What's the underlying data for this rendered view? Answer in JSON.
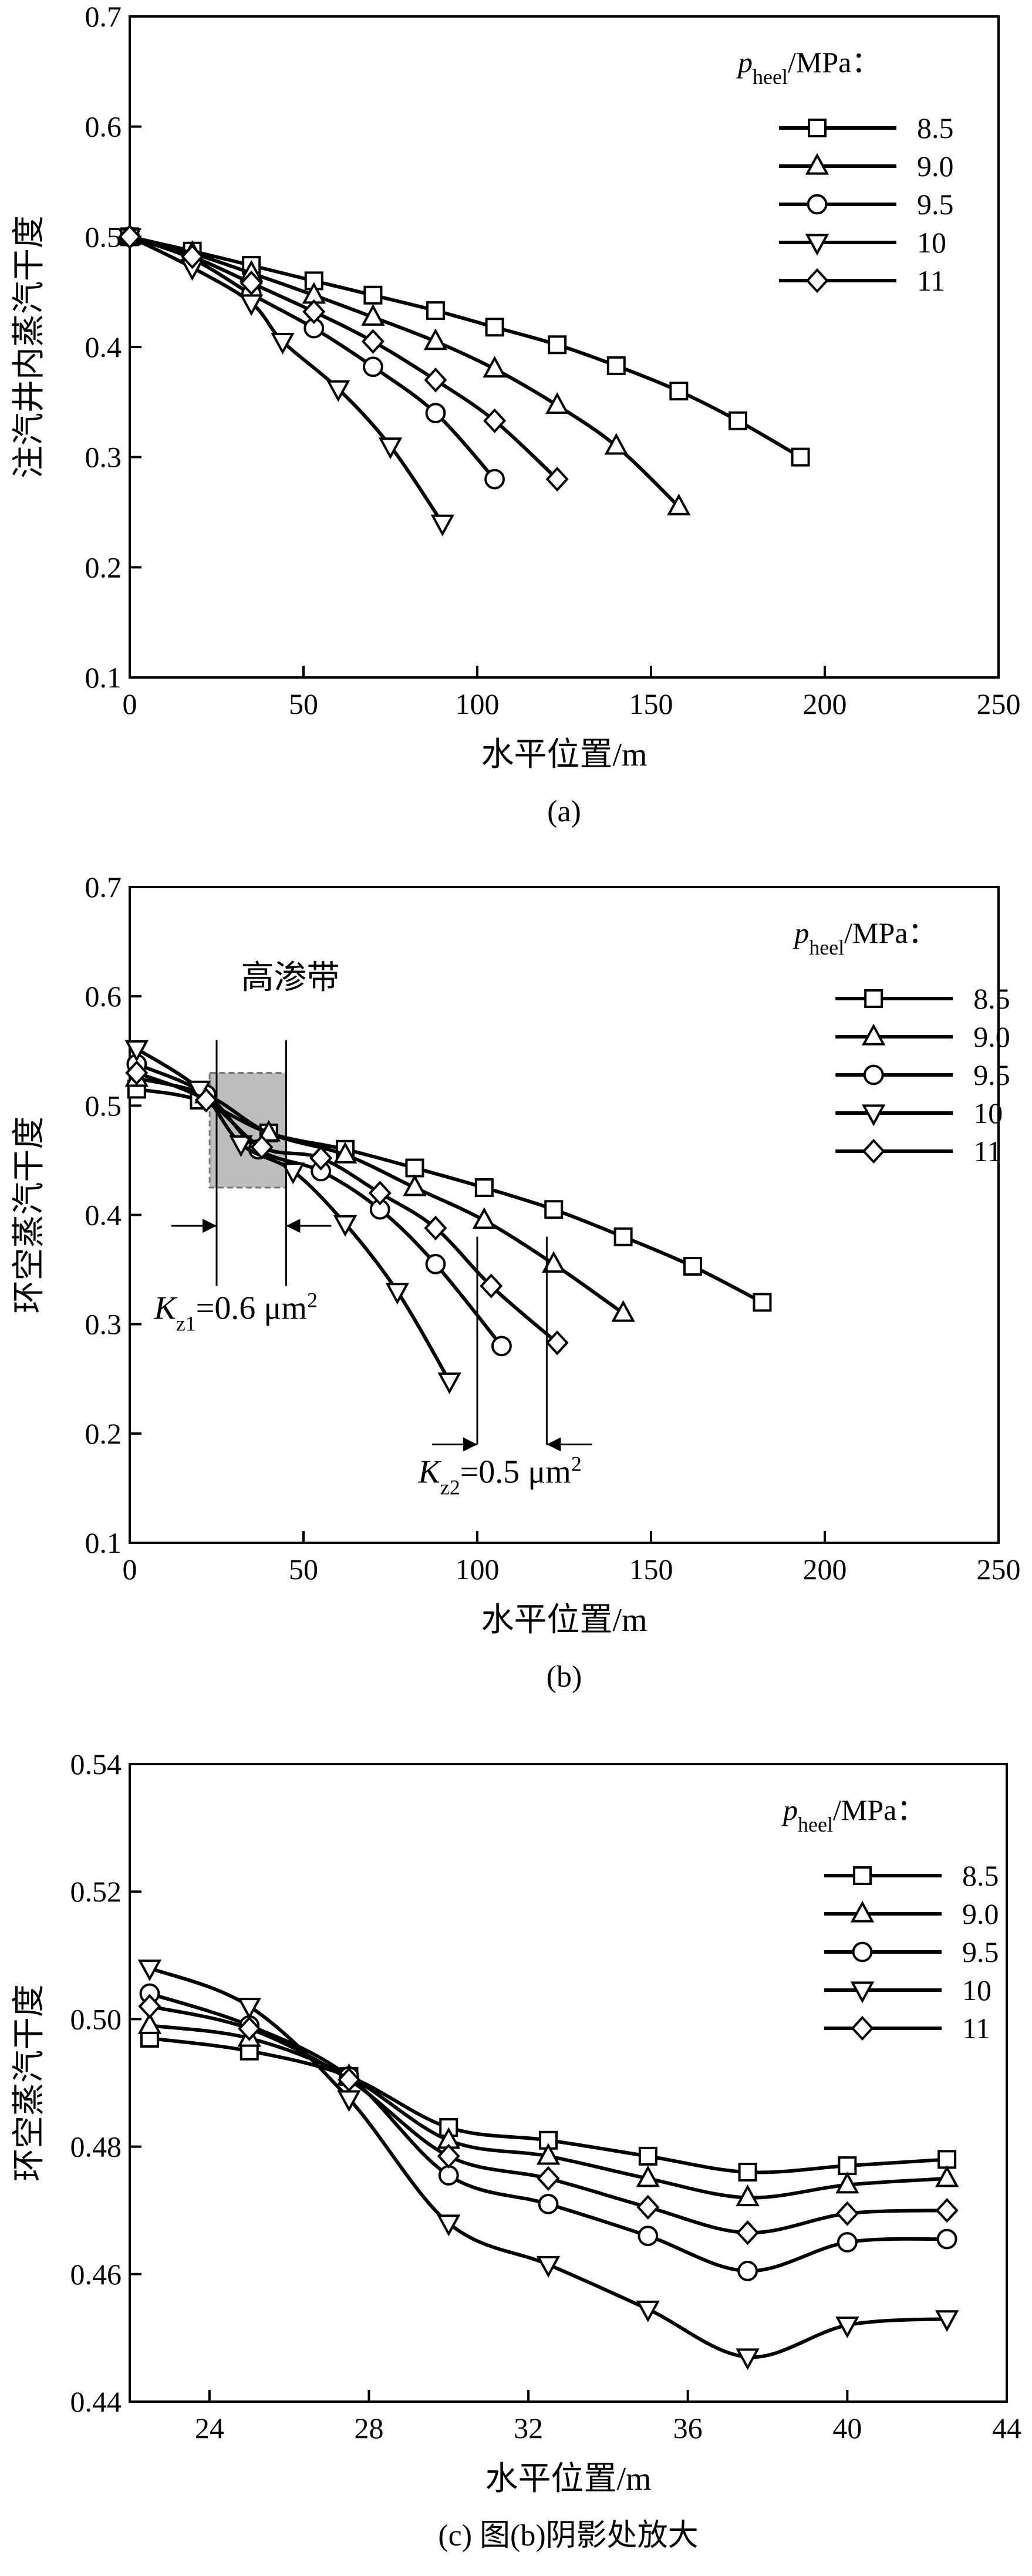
{
  "chart_data": [
    {
      "type": "line",
      "caption": "(a)",
      "x_label": "水平位置/m",
      "y_label": "注汽井内蒸汽干度",
      "legend_title": {
        "symbol": "p",
        "sub": "heel",
        "unit": "/MPa："
      },
      "legend": "upper right",
      "xlim": [
        0,
        250
      ],
      "xticks": [
        0,
        50,
        100,
        150,
        200,
        250
      ],
      "ylim": [
        0.1,
        0.7
      ],
      "yticks": [
        0.1,
        0.2,
        0.3,
        0.4,
        0.5,
        0.6,
        0.7
      ],
      "series": [
        {
          "name": "8.5",
          "marker": "square",
          "color": "#000000",
          "x": [
            0,
            18,
            35,
            53,
            70,
            88,
            105,
            123,
            140,
            158,
            175,
            193
          ],
          "values": [
            0.5,
            0.487,
            0.474,
            0.46,
            0.447,
            0.433,
            0.418,
            0.402,
            0.383,
            0.36,
            0.333,
            0.3
          ]
        },
        {
          "name": "9.0",
          "marker": "triangle-up",
          "color": "#000000",
          "x": [
            0,
            18,
            35,
            53,
            70,
            88,
            105,
            123,
            140,
            158
          ],
          "values": [
            0.5,
            0.485,
            0.467,
            0.447,
            0.427,
            0.405,
            0.38,
            0.347,
            0.31,
            0.255
          ]
        },
        {
          "name": "9.5",
          "marker": "circle",
          "color": "#000000",
          "x": [
            0,
            18,
            35,
            53,
            70,
            88,
            105
          ],
          "values": [
            0.5,
            0.48,
            0.448,
            0.417,
            0.382,
            0.34,
            0.28
          ]
        },
        {
          "name": "10",
          "marker": "triangle-down",
          "color": "#000000",
          "x": [
            0,
            18,
            35,
            44,
            60,
            75,
            90
          ],
          "values": [
            0.5,
            0.472,
            0.44,
            0.405,
            0.362,
            0.31,
            0.24
          ]
        },
        {
          "name": "11",
          "marker": "diamond",
          "color": "#000000",
          "x": [
            0,
            18,
            35,
            53,
            70,
            88,
            105,
            123
          ],
          "values": [
            0.5,
            0.482,
            0.458,
            0.432,
            0.405,
            0.37,
            0.333,
            0.28
          ]
        }
      ]
    },
    {
      "type": "line",
      "caption": "(b)",
      "x_label": "水平位置/m",
      "y_label": "环空蒸汽干度",
      "legend_title": {
        "symbol": "p",
        "sub": "heel",
        "unit": "/MPa："
      },
      "legend": "upper right",
      "xlim": [
        0,
        250
      ],
      "xticks": [
        0,
        50,
        100,
        150,
        200,
        250
      ],
      "ylim": [
        0.1,
        0.7
      ],
      "yticks": [
        0.1,
        0.2,
        0.3,
        0.4,
        0.5,
        0.6,
        0.7
      ],
      "annotations": {
        "zone": "高渗带",
        "kz1": {
          "symbol": "K",
          "sub": "z1",
          "rest": "=0.6 μm",
          "sup": "2"
        },
        "kz2": {
          "symbol": "K",
          "sub": "z2",
          "rest": "=0.5 μm",
          "sup": "2"
        }
      },
      "series": [
        {
          "name": "8.5",
          "marker": "square",
          "color": "#000000",
          "x": [
            2,
            20,
            40,
            62,
            82,
            102,
            122,
            142,
            162,
            182
          ],
          "values": [
            0.515,
            0.505,
            0.475,
            0.46,
            0.443,
            0.425,
            0.405,
            0.38,
            0.353,
            0.32
          ]
        },
        {
          "name": "9.0",
          "marker": "triangle-up",
          "color": "#000000",
          "x": [
            2,
            22,
            40,
            62,
            82,
            102,
            122,
            142
          ],
          "values": [
            0.525,
            0.51,
            0.475,
            0.455,
            0.425,
            0.395,
            0.355,
            0.31
          ]
        },
        {
          "name": "9.5",
          "marker": "circle",
          "color": "#000000",
          "x": [
            2,
            22,
            37,
            55,
            72,
            88,
            107
          ],
          "values": [
            0.538,
            0.51,
            0.46,
            0.44,
            0.405,
            0.355,
            0.28
          ]
        },
        {
          "name": "10",
          "marker": "triangle-down",
          "color": "#000000",
          "x": [
            2,
            20,
            32,
            47,
            62,
            77,
            92
          ],
          "values": [
            0.552,
            0.515,
            0.465,
            0.44,
            0.392,
            0.33,
            0.248
          ]
        },
        {
          "name": "11",
          "marker": "diamond",
          "color": "#000000",
          "x": [
            2,
            22,
            38,
            55,
            72,
            88,
            104,
            123
          ],
          "values": [
            0.53,
            0.505,
            0.462,
            0.452,
            0.42,
            0.388,
            0.335,
            0.283
          ]
        }
      ]
    },
    {
      "type": "line",
      "caption": "(c) 图(b)阴影处放大",
      "x_label": "水平位置/m",
      "y_label": "环空蒸汽干度",
      "legend_title": {
        "symbol": "p",
        "sub": "heel",
        "unit": "/MPa："
      },
      "legend": "upper right",
      "xlim": [
        22,
        44
      ],
      "xticks": [
        24,
        28,
        32,
        36,
        40,
        44
      ],
      "ylim": [
        0.44,
        0.54
      ],
      "yticks": [
        0.44,
        0.46,
        0.48,
        {
          "value": 0.5,
          "label": "0.50"
        },
        0.52,
        0.54
      ],
      "series": [
        {
          "name": "8.5",
          "marker": "square",
          "color": "#000000",
          "x": [
            22.5,
            25,
            27.5,
            30,
            32.5,
            35,
            37.5,
            40,
            42.5
          ],
          "values": [
            0.497,
            0.495,
            0.491,
            0.483,
            0.481,
            0.4785,
            0.476,
            0.477,
            0.478
          ]
        },
        {
          "name": "9.0",
          "marker": "triangle-up",
          "color": "#000000",
          "x": [
            22.5,
            25,
            27.5,
            30,
            32.5,
            35,
            37.5,
            40,
            42.5
          ],
          "values": [
            0.499,
            0.497,
            0.491,
            0.481,
            0.4785,
            0.475,
            0.472,
            0.474,
            0.475
          ]
        },
        {
          "name": "9.5",
          "marker": "circle",
          "color": "#000000",
          "x": [
            22.5,
            25,
            27.5,
            30,
            32.5,
            35,
            37.5,
            40,
            42.5
          ],
          "values": [
            0.504,
            0.499,
            0.491,
            0.4755,
            0.471,
            0.466,
            0.4605,
            0.465,
            0.4655
          ]
        },
        {
          "name": "10",
          "marker": "triangle-down",
          "color": "#000000",
          "x": [
            22.5,
            25,
            27.5,
            30,
            32.5,
            35,
            37.5,
            40,
            42.5
          ],
          "values": [
            0.508,
            0.502,
            0.4875,
            0.468,
            0.4615,
            0.4545,
            0.447,
            0.452,
            0.453
          ]
        },
        {
          "name": "11",
          "marker": "diamond",
          "color": "#000000",
          "x": [
            22.5,
            25,
            27.5,
            30,
            32.5,
            35,
            37.5,
            40,
            42.5
          ],
          "values": [
            0.502,
            0.4985,
            0.4905,
            0.4785,
            0.475,
            0.4705,
            0.4665,
            0.4695,
            0.47
          ]
        }
      ]
    }
  ]
}
